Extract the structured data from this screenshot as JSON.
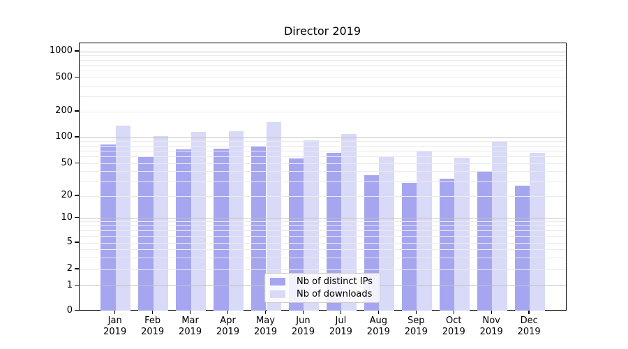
{
  "chart_data": {
    "type": "bar",
    "title": "Director 2019",
    "categories": [
      {
        "month": "Jan",
        "year": "2019"
      },
      {
        "month": "Feb",
        "year": "2019"
      },
      {
        "month": "Mar",
        "year": "2019"
      },
      {
        "month": "Apr",
        "year": "2019"
      },
      {
        "month": "May",
        "year": "2019"
      },
      {
        "month": "Jun",
        "year": "2019"
      },
      {
        "month": "Jul",
        "year": "2019"
      },
      {
        "month": "Aug",
        "year": "2019"
      },
      {
        "month": "Sep",
        "year": "2019"
      },
      {
        "month": "Oct",
        "year": "2019"
      },
      {
        "month": "Nov",
        "year": "2019"
      },
      {
        "month": "Dec",
        "year": "2019"
      }
    ],
    "series": [
      {
        "name": "Nb of distinct IPs",
        "color": "#a6a6f0",
        "values": [
          83,
          60,
          73,
          75,
          80,
          57,
          67,
          36,
          29,
          33,
          40,
          27
        ]
      },
      {
        "name": "Nb of downloads",
        "color": "#d9d9f8",
        "values": [
          138,
          103,
          117,
          119,
          150,
          93,
          110,
          60,
          70,
          59,
          90,
          66
        ]
      }
    ],
    "y_ticks": [
      0,
      1,
      2,
      5,
      10,
      20,
      50,
      100,
      200,
      500,
      1000
    ],
    "y_scale": "symlog",
    "ylim": [
      0,
      1200
    ],
    "xlabel": "",
    "ylabel": "",
    "grid": true,
    "legend_position": "lower center"
  }
}
